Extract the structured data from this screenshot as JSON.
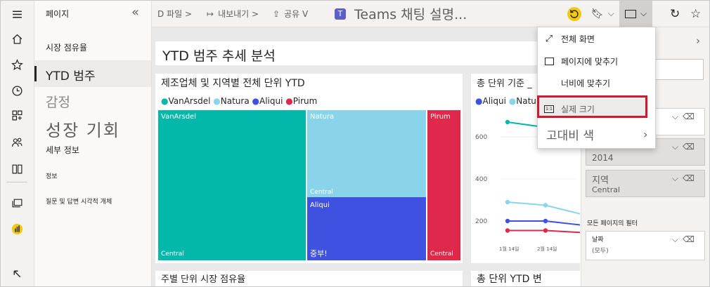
{
  "pages_pane": {
    "title": "페이지",
    "items": [
      {
        "label": "시장 점유율"
      },
      {
        "label": "YTD 범주"
      },
      {
        "label": "감정"
      },
      {
        "label": "성장 기회"
      },
      {
        "label": "세부 정보"
      },
      {
        "label": "정보"
      },
      {
        "label": "질문 및 답변 시각적 개체"
      }
    ]
  },
  "toolbar": {
    "file": "D 파일 >",
    "export": "내보내기 >",
    "share": "공유 V",
    "teams": "Teams 채팅 설명..."
  },
  "view_menu": {
    "items": [
      {
        "label": "전체 화면",
        "icon": "expand-icon"
      },
      {
        "label": "페이지에 맞추기",
        "icon": "fit-page-icon"
      },
      {
        "label": "너비에 맞추기",
        "icon": "fit-width-icon"
      },
      {
        "label": "실제 크기",
        "icon": "actual-size-icon"
      },
      {
        "label": "고대비 색",
        "icon": "chevron-right-icon"
      }
    ],
    "selected_item": "실제 크기",
    "selected_color": "#d0182f"
  },
  "report": {
    "title": "YTD 범주 추세 분석",
    "treemap": {
      "title": "제조업체 및 지역별 전체 단위 YTD",
      "legend": [
        {
          "name": "VanArsdel",
          "color": "#01b8aa"
        },
        {
          "name": "Natura",
          "color": "#8ad4eb"
        },
        {
          "name": "Aliqui",
          "color": "#3f51e0"
        },
        {
          "name": "Pirum",
          "color": "#e0284a"
        }
      ],
      "cells": [
        {
          "label": "VanArsdel",
          "sub": "Central"
        },
        {
          "label": "Natura",
          "sub": "Central"
        },
        {
          "label": "Aliqui",
          "sub": "중부!"
        },
        {
          "label": "Pirum",
          "sub": "Central"
        }
      ]
    },
    "line_chart": {
      "title": "총 단위 기준 _",
      "legend": [
        {
          "name": "Aliqui",
          "color": "#3f51e0"
        },
        {
          "name": "Natu",
          "color": "#8ad4eb"
        }
      ]
    },
    "bottom_left_title": "주별 단위 시장 점유율",
    "bottom_right_title": "총 단위 YTD 변"
  },
  "filters_pane": {
    "cards": [
      {
        "value": "2014"
      },
      {
        "title": "지역",
        "value": "Central"
      }
    ],
    "all_pages_label": "모든 페이지의 필터",
    "date_card": {
      "title": "날짜",
      "value": "(모두)"
    }
  },
  "chart_data": {
    "type": "line",
    "title": "총 단위 기준 _",
    "x": [
      "1월 14일",
      "2월 14일",
      ""
    ],
    "series": [
      {
        "name": "VanArsdel",
        "color": "#01b8aa",
        "values": [
          670,
          645,
          600
        ]
      },
      {
        "name": "Natura",
        "color": "#8ad4eb",
        "values": [
          290,
          275,
          230
        ]
      },
      {
        "name": "Aliqui",
        "color": "#3f51e0",
        "values": [
          200,
          200,
          180
        ]
      },
      {
        "name": "Pirum",
        "color": "#e0284a",
        "values": [
          155,
          155,
          145
        ]
      }
    ],
    "yticks": [
      "600",
      "400",
      "200"
    ],
    "ylim": [
      100,
      700
    ],
    "grid": true
  }
}
